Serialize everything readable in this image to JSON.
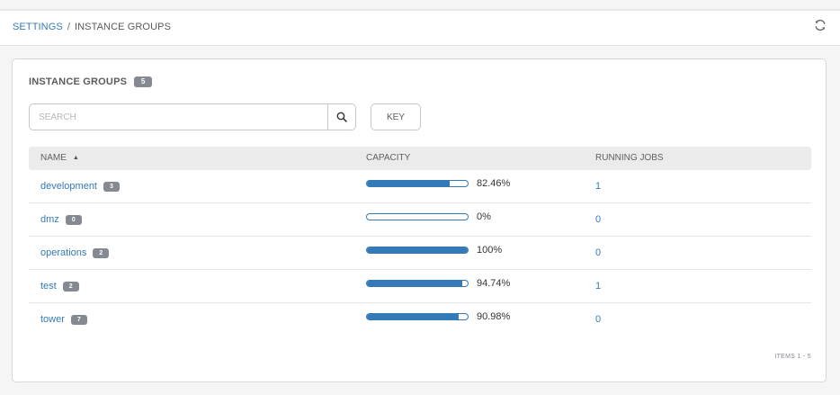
{
  "breadcrumb": {
    "root": "SETTINGS",
    "separator": "/",
    "current": "INSTANCE GROUPS"
  },
  "refresh_icon": "refresh-icon",
  "panel": {
    "title": "INSTANCE GROUPS",
    "count": "5",
    "search_placeholder": "SEARCH",
    "search_value": "",
    "key_label": "KEY",
    "items_label": "ITEMS 1 - 5"
  },
  "table": {
    "headers": {
      "name": "NAME",
      "capacity": "CAPACITY",
      "running_jobs": "RUNNING JOBS"
    },
    "sort_column": "name",
    "sort_direction": "ascending",
    "rows": [
      {
        "name": "development",
        "instances": "3",
        "capacity_pct": 82.46,
        "capacity_label": "82.46%",
        "running_jobs": "1"
      },
      {
        "name": "dmz",
        "instances": "0",
        "capacity_pct": 0,
        "capacity_label": "0%",
        "running_jobs": "0"
      },
      {
        "name": "operations",
        "instances": "2",
        "capacity_pct": 100,
        "capacity_label": "100%",
        "running_jobs": "0"
      },
      {
        "name": "test",
        "instances": "2",
        "capacity_pct": 94.74,
        "capacity_label": "94.74%",
        "running_jobs": "1"
      },
      {
        "name": "tower",
        "instances": "7",
        "capacity_pct": 90.98,
        "capacity_label": "90.98%",
        "running_jobs": "0"
      }
    ]
  },
  "colors": {
    "accent": "#337ab7",
    "badge": "#848992",
    "header_bg": "#ebebeb"
  }
}
